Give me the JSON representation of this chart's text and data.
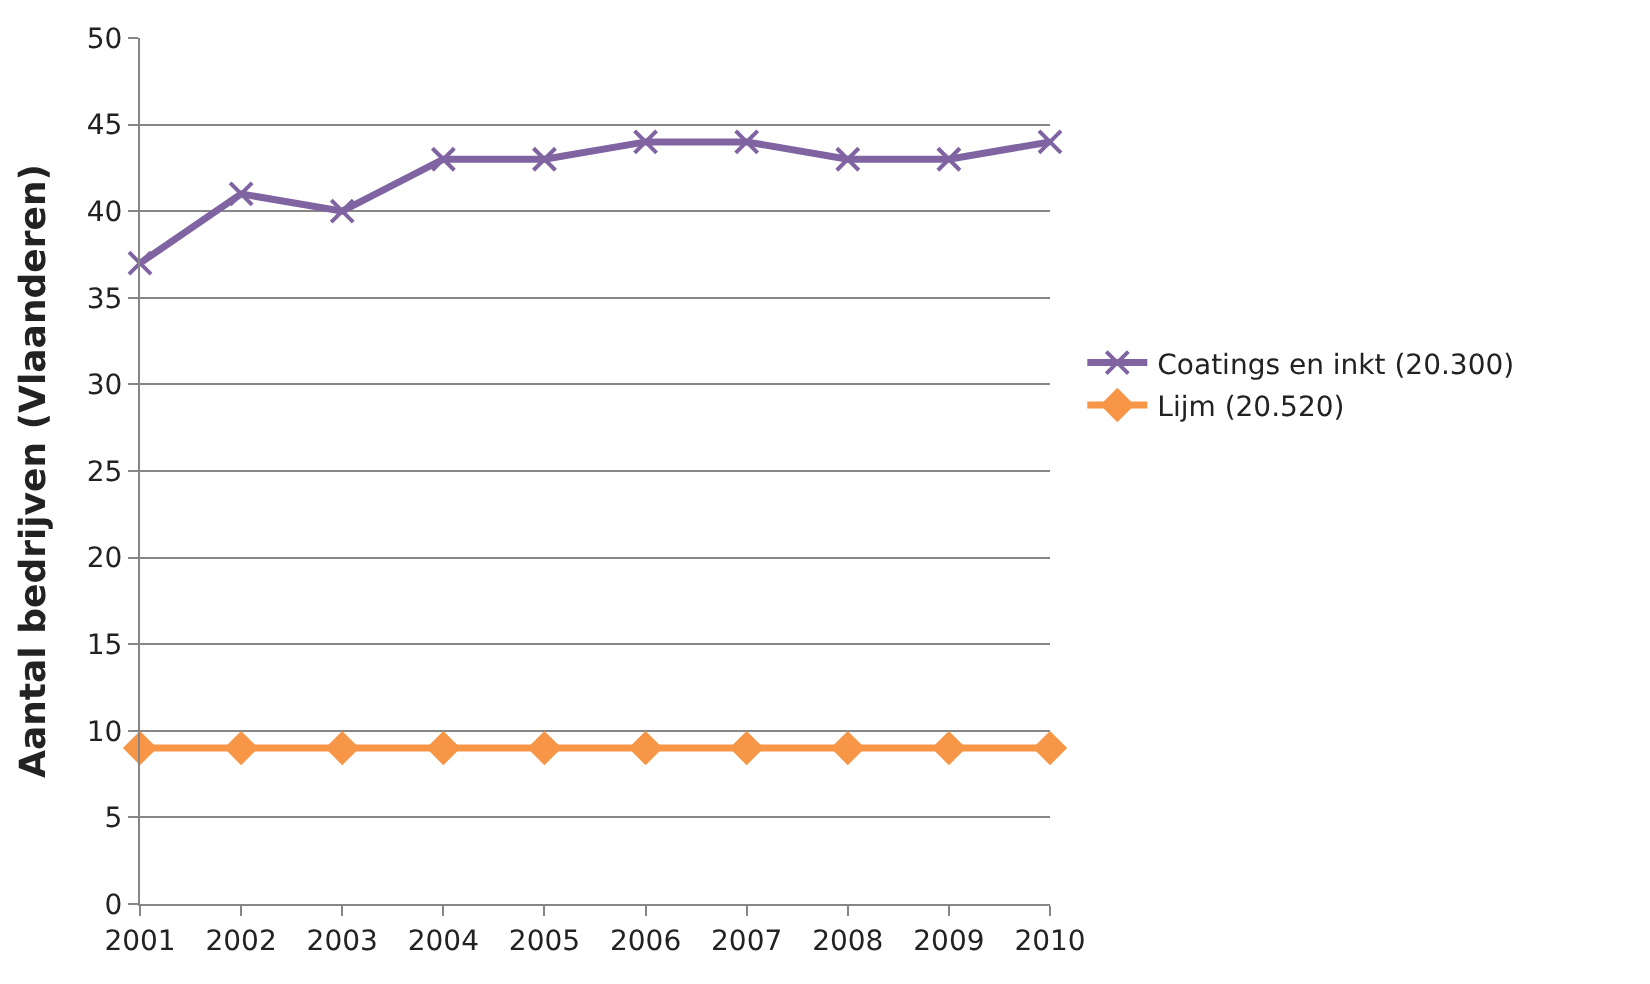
{
  "chart_data": {
    "type": "line",
    "ylabel": "Aantal bedrijven (Vlaanderen)",
    "categories": [
      "2001",
      "2002",
      "2003",
      "2004",
      "2005",
      "2006",
      "2007",
      "2008",
      "2009",
      "2010"
    ],
    "series": [
      {
        "name": "Coatings en inkt (20.300)",
        "color": "#8064a2",
        "marker": "cross",
        "values": [
          37,
          41,
          40,
          43,
          43,
          44,
          44,
          43,
          43,
          44
        ]
      },
      {
        "name": "Lijm (20.520)",
        "color": "#f79646",
        "marker": "diamond",
        "values": [
          9,
          9,
          9,
          9,
          9,
          9,
          9,
          9,
          9,
          9
        ]
      }
    ],
    "ylim": [
      0,
      50
    ],
    "yticks": [
      0,
      5,
      10,
      15,
      20,
      25,
      30,
      35,
      40,
      45,
      50
    ],
    "grid": "y",
    "legend": "right",
    "line_style": "solid"
  }
}
